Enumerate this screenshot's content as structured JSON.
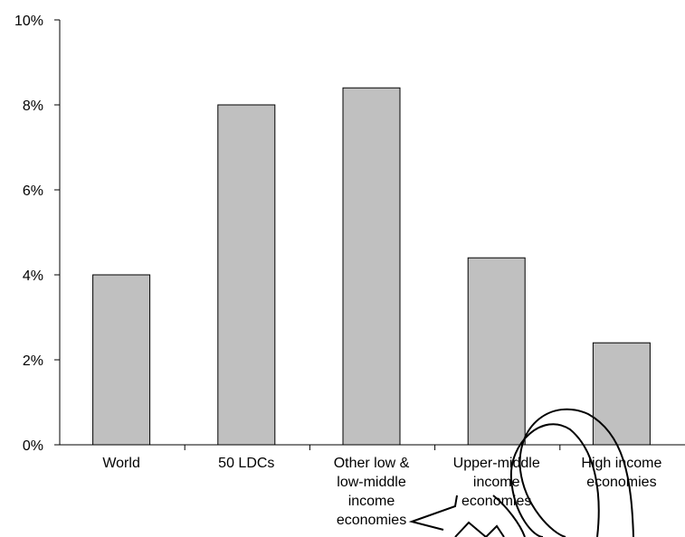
{
  "chart_data": {
    "type": "bar",
    "title": "",
    "xlabel": "",
    "ylabel": "",
    "categories": [
      [
        "World"
      ],
      [
        "50 LDCs"
      ],
      [
        "Other low &",
        "low-middle",
        "income",
        "economies"
      ],
      [
        "Upper-middle",
        "income",
        "economies"
      ],
      [
        "High income",
        "economies"
      ]
    ],
    "values": [
      4.0,
      8.0,
      8.4,
      4.4,
      2.4
    ],
    "ylim": [
      0,
      10
    ],
    "yticks": [
      "0%",
      "2%",
      "4%",
      "6%",
      "8%",
      "10%"
    ],
    "ytick_values": [
      0,
      2,
      4,
      6,
      8,
      10
    ],
    "grid": false,
    "legend": "none",
    "bar_color": "#c0c0c0",
    "bar_edge_color": "#000000"
  }
}
